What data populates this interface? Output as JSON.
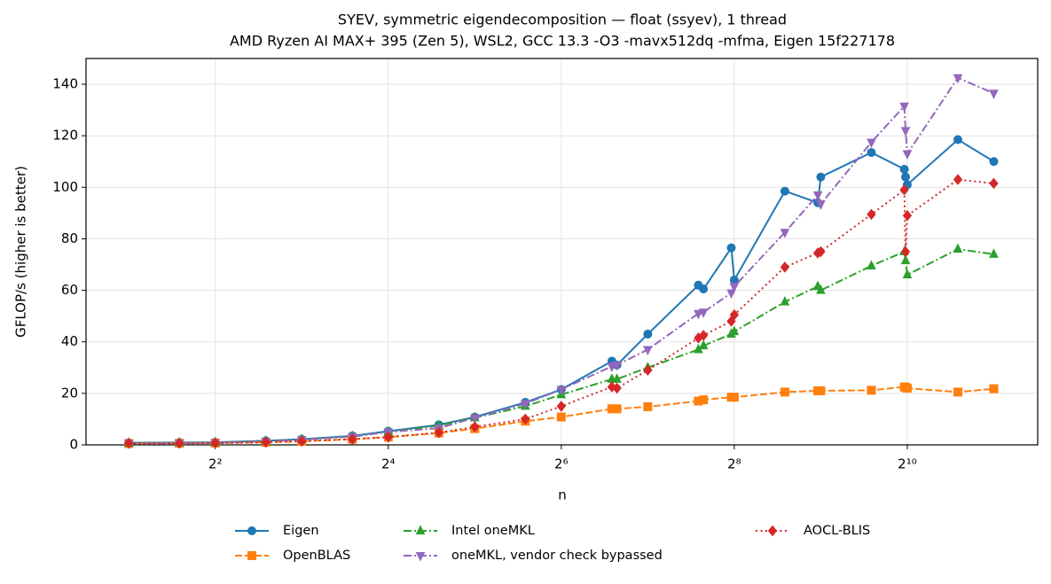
{
  "chart_data": {
    "type": "line",
    "title": "SYEV, symmetric eigendecomposition — float (ssyev), 1 thread",
    "subtitle": "AMD Ryzen AI MAX+ 395 (Zen 5), WSL2, GCC 13.3 -O3 -mavx512dq -mfma, Eigen 15f227178",
    "x_label": "n",
    "y_label": "GFLOP/s (higher is better)",
    "x": [
      2,
      3,
      4,
      6,
      8,
      12,
      16,
      24,
      32,
      48,
      64,
      96,
      100,
      128,
      192,
      200,
      250,
      256,
      384,
      500,
      512,
      768,
      1000,
      1010,
      1024,
      1536,
      2048
    ],
    "xscale": "log",
    "xlog_base": 2,
    "xlim": [
      1.42,
      2912
    ],
    "xticks": [
      {
        "value": 4,
        "label": "2²"
      },
      {
        "value": 16,
        "label": "2⁴"
      },
      {
        "value": 64,
        "label": "2⁶"
      },
      {
        "value": 256,
        "label": "2⁸"
      },
      {
        "value": 1024,
        "label": "2¹⁰"
      }
    ],
    "ylim": [
      0,
      150
    ],
    "yticks": [
      0,
      20,
      40,
      60,
      80,
      100,
      120,
      140
    ],
    "grid": true,
    "legend": "below",
    "series": [
      {
        "name": "Eigen",
        "color": "#1f77b4",
        "marker": "circle",
        "linestyle": "solid",
        "values": [
          0.8,
          0.9,
          1.0,
          1.6,
          2.2,
          3.5,
          5.3,
          7.8,
          10.8,
          16.5,
          21.5,
          32.5,
          31,
          43,
          62,
          60.5,
          76.5,
          64,
          98.5,
          94,
          104,
          113.5,
          107,
          104,
          101,
          118.5,
          110
        ]
      },
      {
        "name": "OpenBLAS",
        "color": "#ff7f0e",
        "marker": "square",
        "linestyle": "dashed",
        "values": [
          0.5,
          0.6,
          0.7,
          1.0,
          1.4,
          2.2,
          3.0,
          4.6,
          6.3,
          9.2,
          10.8,
          14,
          14,
          14.8,
          17,
          17.5,
          18.5,
          18.5,
          20.5,
          21,
          21,
          21.2,
          22.5,
          22.3,
          22,
          20.5,
          21.8
        ]
      },
      {
        "name": "Intel oneMKL",
        "color": "#2ca02c",
        "marker": "triangle-up",
        "linestyle": "dashdot",
        "values": [
          0.7,
          0.8,
          0.9,
          1.5,
          2.1,
          3.3,
          5.0,
          7.5,
          10.5,
          15.0,
          19.5,
          25.5,
          25.5,
          30,
          37,
          38.5,
          43,
          44,
          55.5,
          61.5,
          60,
          69.5,
          75,
          71.5,
          66,
          76,
          74
        ]
      },
      {
        "name": "oneMKL, vendor check bypassed",
        "color": "#9467bd",
        "marker": "triangle-down",
        "linestyle": "dashdot",
        "values": [
          0.6,
          0.7,
          0.8,
          1.4,
          2.0,
          3.2,
          5.0,
          6.5,
          10.5,
          16,
          21.5,
          30.5,
          31,
          37,
          51,
          51.5,
          59,
          61.5,
          82.5,
          97,
          93.5,
          117.5,
          131.5,
          122,
          113,
          142.5,
          136.5
        ]
      },
      {
        "name": "AOCL-BLIS",
        "color": "#d62728",
        "marker": "diamond",
        "linestyle": "dotted",
        "values": [
          0.6,
          0.6,
          0.7,
          1.0,
          1.4,
          2.2,
          3.0,
          4.8,
          7.0,
          10.0,
          15.0,
          22.5,
          22,
          29,
          41.5,
          42.5,
          48,
          50.5,
          69,
          74.5,
          75,
          89.5,
          99,
          75,
          89,
          103,
          101.5
        ]
      }
    ]
  }
}
